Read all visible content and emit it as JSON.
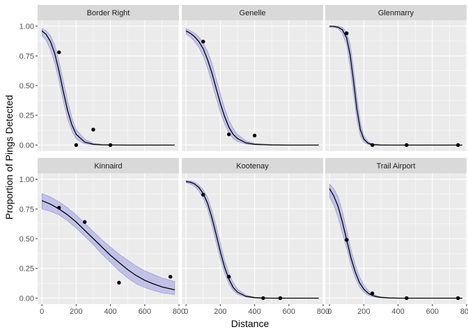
{
  "chart_data": {
    "type": "scatter",
    "xlabel": "Distance",
    "ylabel": "Proportion of Pings Detected",
    "xlim": [
      -25,
      800
    ],
    "ylim": [
      -0.05,
      1.05
    ],
    "x_ticks": [
      0,
      200,
      400,
      600,
      800
    ],
    "x_tick_labels": [
      "0",
      "200",
      "400",
      "600",
      "800"
    ],
    "y_ticks": [
      0,
      0.25,
      0.5,
      0.75,
      1
    ],
    "y_tick_labels": [
      "0.00",
      "0.25",
      "0.50",
      "0.75",
      "1.00"
    ],
    "grid": true,
    "layout": "facet grid 2 rows x 3 columns",
    "colors": {
      "panel_bg": "#ebebeb",
      "strip_bg": "#d9d9d9",
      "grid": "#ffffff",
      "ribbon": "#b3b3e6",
      "ribbon_edge": "#8f8fc8",
      "line": "#000000",
      "point": "#000000"
    },
    "panels": [
      {
        "name": "Border Right",
        "points": [
          [
            100,
            0.78
          ],
          [
            200,
            0.0
          ],
          [
            300,
            0.13
          ],
          [
            400,
            0.0
          ]
        ],
        "fit": {
          "x": [
            0,
            25,
            50,
            75,
            100,
            125,
            150,
            175,
            200,
            250,
            300,
            350,
            400,
            500,
            600,
            700,
            775
          ],
          "y": [
            0.96,
            0.93,
            0.87,
            0.77,
            0.62,
            0.45,
            0.29,
            0.17,
            0.09,
            0.025,
            0.006,
            0.002,
            0.0005,
            0.0,
            0.0,
            0.0,
            0.0
          ],
          "lower": [
            0.92,
            0.88,
            0.8,
            0.69,
            0.54,
            0.37,
            0.22,
            0.12,
            0.05,
            0.01,
            0.002,
            0.0005,
            0.0,
            0.0,
            0.0,
            0.0,
            0.0
          ],
          "upper": [
            0.98,
            0.96,
            0.92,
            0.84,
            0.7,
            0.54,
            0.37,
            0.23,
            0.13,
            0.05,
            0.015,
            0.005,
            0.002,
            0.0,
            0.0,
            0.0,
            0.0
          ]
        }
      },
      {
        "name": "Genelle",
        "points": [
          [
            100,
            0.87
          ],
          [
            250,
            0.09
          ],
          [
            400,
            0.08
          ]
        ],
        "fit": {
          "x": [
            0,
            25,
            50,
            75,
            100,
            125,
            150,
            175,
            200,
            225,
            250,
            275,
            300,
            350,
            400,
            500,
            600,
            700,
            775
          ],
          "y": [
            0.96,
            0.94,
            0.91,
            0.87,
            0.81,
            0.72,
            0.61,
            0.48,
            0.35,
            0.24,
            0.15,
            0.09,
            0.055,
            0.018,
            0.006,
            0.001,
            0.0,
            0.0,
            0.0
          ],
          "lower": [
            0.93,
            0.91,
            0.87,
            0.82,
            0.75,
            0.65,
            0.53,
            0.4,
            0.28,
            0.18,
            0.1,
            0.055,
            0.03,
            0.008,
            0.002,
            0.0,
            0.0,
            0.0,
            0.0
          ],
          "upper": [
            0.98,
            0.96,
            0.94,
            0.91,
            0.86,
            0.79,
            0.69,
            0.56,
            0.43,
            0.31,
            0.21,
            0.14,
            0.09,
            0.035,
            0.013,
            0.003,
            0.0,
            0.0,
            0.0
          ]
        }
      },
      {
        "name": "Glenmarry",
        "points": [
          [
            100,
            0.94
          ],
          [
            250,
            0.0
          ],
          [
            450,
            0.0
          ],
          [
            750,
            0.0
          ]
        ],
        "fit": {
          "x": [
            0,
            25,
            50,
            75,
            100,
            120,
            140,
            160,
            180,
            200,
            225,
            250,
            300,
            400,
            500,
            600,
            700,
            775
          ],
          "y": [
            1.0,
            0.998,
            0.99,
            0.97,
            0.9,
            0.76,
            0.54,
            0.3,
            0.13,
            0.05,
            0.015,
            0.004,
            0.0,
            0.0,
            0.0,
            0.0,
            0.0,
            0.0
          ],
          "lower": [
            0.99,
            0.99,
            0.98,
            0.94,
            0.84,
            0.66,
            0.43,
            0.21,
            0.08,
            0.025,
            0.006,
            0.001,
            0.0,
            0.0,
            0.0,
            0.0,
            0.0,
            0.0
          ],
          "upper": [
            1.0,
            1.0,
            1.0,
            0.99,
            0.95,
            0.85,
            0.65,
            0.4,
            0.2,
            0.08,
            0.03,
            0.01,
            0.002,
            0.0,
            0.0,
            0.0,
            0.0,
            0.0
          ]
        }
      },
      {
        "name": "Kinnaird",
        "points": [
          [
            100,
            0.76
          ],
          [
            250,
            0.64
          ],
          [
            450,
            0.13
          ],
          [
            750,
            0.18
          ]
        ],
        "fit": {
          "x": [
            0,
            50,
            100,
            150,
            200,
            250,
            300,
            350,
            400,
            450,
            500,
            550,
            600,
            650,
            700,
            775
          ],
          "y": [
            0.82,
            0.79,
            0.75,
            0.7,
            0.64,
            0.57,
            0.5,
            0.43,
            0.36,
            0.3,
            0.24,
            0.19,
            0.15,
            0.12,
            0.095,
            0.07
          ],
          "lower": [
            0.75,
            0.73,
            0.7,
            0.65,
            0.59,
            0.52,
            0.45,
            0.37,
            0.3,
            0.23,
            0.17,
            0.12,
            0.09,
            0.065,
            0.045,
            0.03
          ],
          "upper": [
            0.88,
            0.85,
            0.81,
            0.76,
            0.7,
            0.63,
            0.56,
            0.49,
            0.43,
            0.37,
            0.32,
            0.27,
            0.23,
            0.2,
            0.17,
            0.14
          ]
        }
      },
      {
        "name": "Kootenay",
        "points": [
          [
            100,
            0.87
          ],
          [
            250,
            0.18
          ],
          [
            450,
            0.0
          ],
          [
            550,
            0.0
          ]
        ],
        "fit": {
          "x": [
            0,
            25,
            50,
            75,
            100,
            125,
            150,
            175,
            200,
            225,
            250,
            275,
            300,
            350,
            400,
            450,
            500,
            600,
            700,
            775
          ],
          "y": [
            0.98,
            0.975,
            0.96,
            0.93,
            0.88,
            0.8,
            0.68,
            0.54,
            0.39,
            0.26,
            0.16,
            0.09,
            0.05,
            0.015,
            0.004,
            0.001,
            0.0,
            0.0,
            0.0,
            0.0
          ],
          "lower": [
            0.97,
            0.96,
            0.94,
            0.9,
            0.84,
            0.75,
            0.62,
            0.47,
            0.33,
            0.21,
            0.12,
            0.065,
            0.033,
            0.008,
            0.002,
            0.0,
            0.0,
            0.0,
            0.0,
            0.0
          ],
          "upper": [
            0.99,
            0.985,
            0.975,
            0.95,
            0.91,
            0.85,
            0.74,
            0.61,
            0.46,
            0.32,
            0.21,
            0.13,
            0.075,
            0.025,
            0.008,
            0.002,
            0.0,
            0.0,
            0.0,
            0.0
          ]
        }
      },
      {
        "name": "Trail Airport",
        "points": [
          [
            100,
            0.49
          ],
          [
            250,
            0.04
          ],
          [
            450,
            0.0
          ],
          [
            750,
            0.0
          ]
        ],
        "fit": {
          "x": [
            0,
            25,
            50,
            75,
            100,
            125,
            150,
            175,
            200,
            225,
            250,
            275,
            300,
            350,
            400,
            500,
            600,
            700,
            775
          ],
          "y": [
            0.92,
            0.86,
            0.77,
            0.64,
            0.49,
            0.34,
            0.22,
            0.13,
            0.075,
            0.042,
            0.023,
            0.012,
            0.006,
            0.0015,
            0.0,
            0.0,
            0.0,
            0.0,
            0.0
          ],
          "lower": [
            0.85,
            0.78,
            0.68,
            0.55,
            0.42,
            0.28,
            0.17,
            0.095,
            0.05,
            0.025,
            0.012,
            0.006,
            0.003,
            0.0005,
            0.0,
            0.0,
            0.0,
            0.0,
            0.0
          ],
          "upper": [
            0.96,
            0.92,
            0.85,
            0.73,
            0.57,
            0.41,
            0.28,
            0.18,
            0.11,
            0.065,
            0.037,
            0.021,
            0.011,
            0.003,
            0.0008,
            0.0,
            0.0,
            0.0,
            0.0
          ]
        }
      }
    ]
  }
}
